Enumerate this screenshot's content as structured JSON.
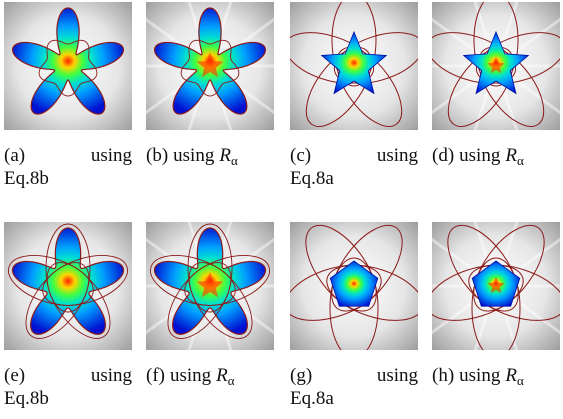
{
  "figure": {
    "panels": [
      {
        "id": "a",
        "label": "(a)",
        "caption": "using",
        "method": "Eq.8b",
        "shape": "flower-5",
        "symbol": ""
      },
      {
        "id": "b",
        "label": "(b)",
        "caption": "using",
        "method": "",
        "shape": "flower-5",
        "symbol": "R",
        "subscript": "α"
      },
      {
        "id": "c",
        "label": "(c)",
        "caption": "using",
        "method": "Eq.8a",
        "shape": "star-5",
        "symbol": ""
      },
      {
        "id": "d",
        "label": "(d)",
        "caption": "using",
        "method": "",
        "shape": "star-5",
        "symbol": "R",
        "subscript": "α"
      },
      {
        "id": "e",
        "label": "(e)",
        "caption": "using",
        "method": "Eq.8b",
        "shape": "flower-5-union",
        "symbol": ""
      },
      {
        "id": "f",
        "label": "(f)",
        "caption": "using",
        "method": "",
        "shape": "flower-5-union",
        "symbol": "R",
        "subscript": "α"
      },
      {
        "id": "g",
        "label": "(g)",
        "caption": "using",
        "method": "Eq.8a",
        "shape": "pentagon",
        "symbol": ""
      },
      {
        "id": "h",
        "label": "(h)",
        "caption": "using",
        "method": "",
        "shape": "pentagon",
        "symbol": "R",
        "subscript": "α"
      }
    ],
    "colors": {
      "outline": "#8b1a1a",
      "field_background": "#9a9a9a",
      "heat_center": "#ff2000",
      "heat_edge": "#0010d0"
    }
  }
}
